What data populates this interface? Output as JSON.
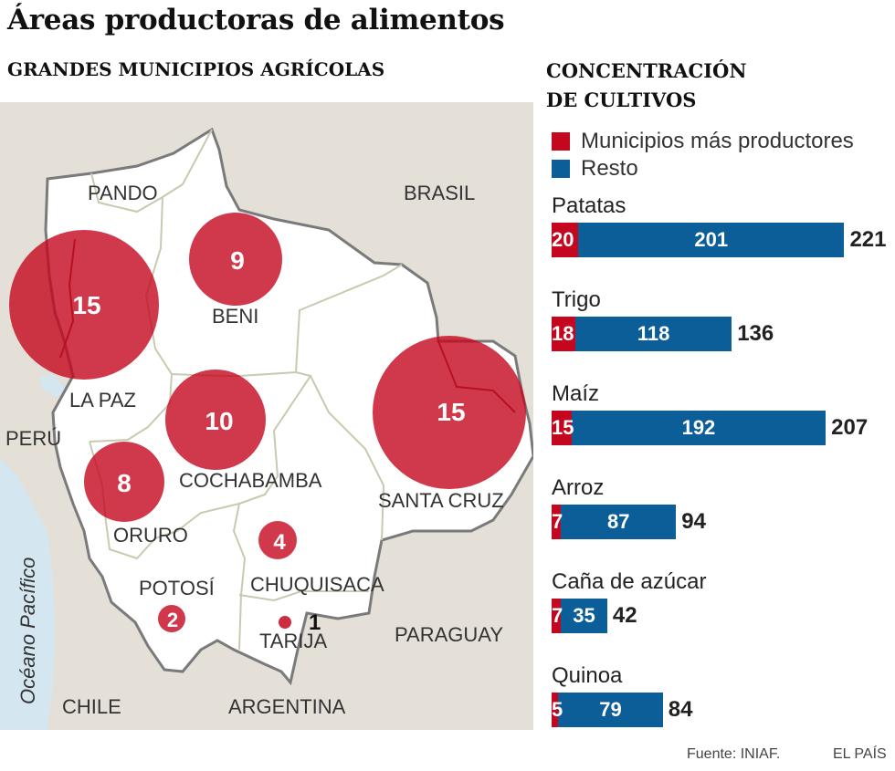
{
  "title": "Áreas productoras de alimentos",
  "map_heading": "GRANDES MUNICIPIOS AGRÍCOLAS",
  "concentration_heading": [
    "CONCENTRACIÓN",
    "DE CULTIVOS"
  ],
  "colors": {
    "red": "#c4071e",
    "blue": "#0c5e98",
    "circle": "#c4071e"
  },
  "map_labels": {
    "pando": "PANDO",
    "brasil": "BRASIL",
    "beni": "BENI",
    "la_paz": "LA PAZ",
    "peru": "PERÚ",
    "cochabamba": "COCHABAMBA",
    "santa_cruz": "SANTA CRUZ",
    "oruro": "ORURO",
    "potosi": "POTOSÍ",
    "chuquisaca": "CHUQUISACA",
    "tarija": "TARIJA",
    "paraguay": "PARAGUAY",
    "chile": "CHILE",
    "argentina": "ARGENTINA",
    "oceano": "Océano Pacífico"
  },
  "circles": {
    "la_paz": 15,
    "beni": 9,
    "cochabamba": 10,
    "santa_cruz": 15,
    "oruro": 8,
    "chuquisaca": 4,
    "potosi": 2,
    "tarija": 1
  },
  "legend": {
    "red": "Municipios más productores",
    "blue": "Resto"
  },
  "crops": [
    {
      "name": "Patatas",
      "top": 20,
      "rest": 201,
      "total": 221
    },
    {
      "name": "Trigo",
      "top": 18,
      "rest": 118,
      "total": 136
    },
    {
      "name": "Maíz",
      "top": 15,
      "rest": 192,
      "total": 207
    },
    {
      "name": "Arroz",
      "top": 7,
      "rest": 87,
      "total": 94
    },
    {
      "name": "Caña de azúcar",
      "top": 7,
      "rest": 35,
      "total": 42
    },
    {
      "name": "Quinoa",
      "top": 5,
      "rest": 79,
      "total": 84
    }
  ],
  "source": "Fuente: INIAF.",
  "brand": "EL PAÍS"
}
